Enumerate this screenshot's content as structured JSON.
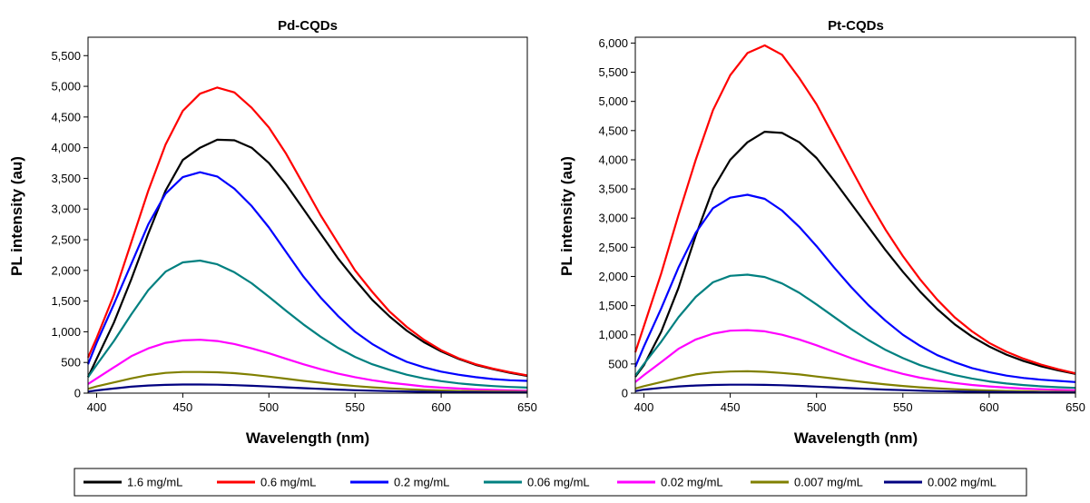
{
  "chart_data": [
    {
      "type": "line",
      "title": "Pd-CQDs",
      "xlabel": "Wavelength (nm)",
      "ylabel": "PL intensity (au)",
      "xlim": [
        395,
        650
      ],
      "ylim": [
        0,
        5800
      ],
      "xticks": [
        400,
        450,
        500,
        550,
        600,
        650
      ],
      "xtick_labels": [
        "400",
        "450",
        "500",
        "550",
        "600",
        "650"
      ],
      "yticks": [
        0,
        500,
        1000,
        1500,
        2000,
        2500,
        3000,
        3500,
        4000,
        4500,
        5000,
        5500
      ],
      "ytick_labels": [
        "0",
        "500",
        "1,000",
        "1,500",
        "2,000",
        "2,500",
        "3,000",
        "3,500",
        "4,000",
        "4,500",
        "5,000",
        "5,500"
      ],
      "grid": false,
      "x": [
        395,
        400,
        410,
        420,
        430,
        440,
        450,
        460,
        470,
        480,
        490,
        500,
        510,
        520,
        530,
        540,
        550,
        560,
        570,
        580,
        590,
        600,
        610,
        620,
        630,
        640,
        650
      ],
      "series": [
        {
          "name": "1.6 mg/mL",
          "color": "#000000",
          "values": [
            260,
            560,
            1150,
            1850,
            2600,
            3300,
            3800,
            4000,
            4130,
            4120,
            4000,
            3750,
            3400,
            3000,
            2600,
            2200,
            1850,
            1520,
            1250,
            1020,
            830,
            680,
            560,
            460,
            390,
            330,
            280
          ]
        },
        {
          "name": "0.6 mg/mL",
          "color": "#ff0000",
          "values": [
            580,
            900,
            1600,
            2450,
            3300,
            4050,
            4600,
            4880,
            4980,
            4900,
            4650,
            4330,
            3900,
            3400,
            2900,
            2450,
            2000,
            1650,
            1330,
            1080,
            870,
            700,
            570,
            470,
            400,
            340,
            290
          ]
        },
        {
          "name": "0.2 mg/mL",
          "color": "#0000ff",
          "values": [
            470,
            820,
            1450,
            2100,
            2750,
            3250,
            3520,
            3600,
            3530,
            3330,
            3050,
            2700,
            2300,
            1900,
            1560,
            1260,
            1000,
            800,
            640,
            510,
            420,
            350,
            300,
            260,
            230,
            210,
            200
          ]
        },
        {
          "name": "0.06 mg/mL",
          "color": "#008080",
          "values": [
            260,
            460,
            850,
            1280,
            1680,
            1980,
            2130,
            2160,
            2100,
            1970,
            1790,
            1570,
            1340,
            1120,
            920,
            740,
            590,
            470,
            380,
            300,
            240,
            195,
            160,
            135,
            115,
            100,
            90
          ]
        },
        {
          "name": "0.02 mg/mL",
          "color": "#ff00ff",
          "values": [
            150,
            240,
            420,
            600,
            730,
            820,
            860,
            870,
            850,
            800,
            730,
            650,
            560,
            470,
            390,
            320,
            260,
            210,
            170,
            140,
            110,
            90,
            75,
            62,
            52,
            45,
            40
          ]
        },
        {
          "name": "0.007 mg/mL",
          "color": "#808000",
          "values": [
            70,
            110,
            175,
            240,
            295,
            330,
            345,
            345,
            340,
            325,
            300,
            270,
            235,
            200,
            170,
            140,
            115,
            95,
            78,
            64,
            52,
            43,
            36,
            30,
            26,
            23,
            20
          ]
        },
        {
          "name": "0.002 mg/mL",
          "color": "#000080",
          "values": [
            25,
            45,
            75,
            105,
            125,
            135,
            140,
            140,
            137,
            130,
            120,
            108,
            95,
            82,
            70,
            58,
            48,
            40,
            33,
            27,
            22,
            18,
            15,
            13,
            11,
            10,
            9
          ]
        }
      ]
    },
    {
      "type": "line",
      "title": "Pt-CQDs",
      "xlabel": "Wavelength (nm)",
      "ylabel": "PL intensity (au)",
      "xlim": [
        395,
        650
      ],
      "ylim": [
        0,
        6100
      ],
      "xticks": [
        400,
        450,
        500,
        550,
        600,
        650
      ],
      "xtick_labels": [
        "400",
        "450",
        "500",
        "550",
        "600",
        "650"
      ],
      "yticks": [
        0,
        500,
        1000,
        1500,
        2000,
        2500,
        3000,
        3500,
        4000,
        4500,
        5000,
        5500,
        6000
      ],
      "ytick_labels": [
        "0",
        "500",
        "1,000",
        "1,500",
        "2,000",
        "2,500",
        "3,000",
        "3,500",
        "4,000",
        "4,500",
        "5,000",
        "5,500",
        "6,000"
      ],
      "grid": false,
      "x": [
        395,
        400,
        410,
        420,
        430,
        440,
        450,
        460,
        470,
        480,
        490,
        500,
        510,
        520,
        530,
        540,
        550,
        560,
        570,
        580,
        590,
        600,
        610,
        620,
        630,
        640,
        650
      ],
      "series": [
        {
          "name": "1.6 mg/mL",
          "color": "#000000",
          "values": [
            280,
            480,
            1050,
            1800,
            2700,
            3500,
            4000,
            4300,
            4480,
            4460,
            4300,
            4030,
            3650,
            3250,
            2850,
            2450,
            2080,
            1740,
            1440,
            1180,
            970,
            800,
            660,
            550,
            460,
            390,
            330
          ]
        },
        {
          "name": "0.6 mg/mL",
          "color": "#ff0000",
          "values": [
            700,
            1150,
            2050,
            3050,
            4000,
            4850,
            5450,
            5830,
            5960,
            5800,
            5400,
            4950,
            4400,
            3850,
            3300,
            2800,
            2350,
            1950,
            1600,
            1300,
            1060,
            860,
            710,
            590,
            490,
            410,
            340
          ]
        },
        {
          "name": "0.2 mg/mL",
          "color": "#0000ff",
          "values": [
            450,
            800,
            1450,
            2150,
            2750,
            3170,
            3350,
            3400,
            3330,
            3130,
            2850,
            2520,
            2160,
            1820,
            1510,
            1240,
            1000,
            810,
            650,
            530,
            430,
            360,
            300,
            260,
            230,
            210,
            190
          ]
        },
        {
          "name": "0.06 mg/mL",
          "color": "#008080",
          "values": [
            300,
            500,
            880,
            1300,
            1650,
            1900,
            2010,
            2030,
            1990,
            1880,
            1720,
            1520,
            1310,
            1100,
            910,
            740,
            600,
            480,
            390,
            310,
            250,
            200,
            165,
            138,
            117,
            101,
            90
          ]
        },
        {
          "name": "0.02 mg/mL",
          "color": "#ff00ff",
          "values": [
            190,
            310,
            530,
            760,
            920,
            1020,
            1070,
            1080,
            1060,
            1000,
            920,
            820,
            710,
            600,
            500,
            410,
            330,
            265,
            215,
            175,
            140,
            115,
            95,
            78,
            65,
            55,
            48
          ]
        },
        {
          "name": "0.007 mg/mL",
          "color": "#808000",
          "values": [
            80,
            120,
            190,
            260,
            320,
            355,
            370,
            375,
            365,
            345,
            320,
            285,
            250,
            215,
            180,
            150,
            123,
            100,
            82,
            67,
            55,
            45,
            38,
            32,
            27,
            24,
            21
          ]
        },
        {
          "name": "0.002 mg/mL",
          "color": "#000080",
          "values": [
            35,
            60,
            90,
            115,
            130,
            140,
            145,
            145,
            142,
            135,
            125,
            112,
            99,
            86,
            73,
            61,
            51,
            42,
            35,
            29,
            24,
            20,
            17,
            14,
            12,
            11,
            10
          ]
        }
      ]
    }
  ],
  "legend": {
    "placement": "bottom",
    "items": [
      "1.6 mg/mL",
      "0.6 mg/mL",
      "0.2 mg/mL",
      "0.06 mg/mL",
      "0.02 mg/mL",
      "0.007 mg/mL",
      "0.002 mg/mL"
    ],
    "colors": [
      "#000000",
      "#ff0000",
      "#0000ff",
      "#008080",
      "#ff00ff",
      "#808000",
      "#000080"
    ]
  }
}
